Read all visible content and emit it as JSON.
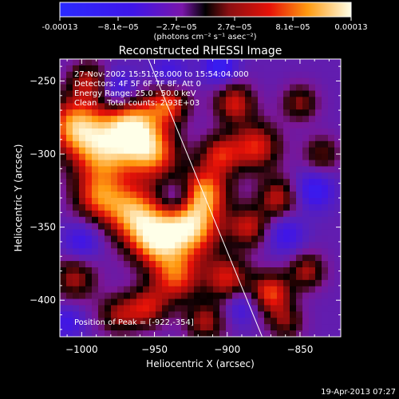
{
  "colorbar": {
    "tick_labels": [
      "-0.00013",
      "−8.1e−05",
      "−2.7e−05",
      "2.7e−05",
      "8.1e−05",
      "0.00013"
    ],
    "unit_label": "(photons cm⁻² s⁻¹ asec⁻²)",
    "range": [
      -0.00013,
      0.00013
    ]
  },
  "chart_data": {
    "type": "heatmap",
    "title": "Reconstructed RHESSI Image",
    "xlabel": "Heliocentric X (arcsec)",
    "ylabel": "Heliocentric Y (arcsec)",
    "xlim": [
      -1015,
      -822
    ],
    "ylim": [
      -425,
      -235
    ],
    "x_ticks": [
      -1000,
      -950,
      -900,
      -850
    ],
    "y_ticks": [
      -250,
      -300,
      -350,
      -400
    ],
    "x_tick_labels": [
      "−1000",
      "−950",
      "−900",
      "−850"
    ],
    "y_tick_labels": [
      "−250",
      "−300",
      "−350",
      "−400"
    ],
    "info_lines": [
      "27-Nov-2002 15:51:28.000 to 15:54:04.000",
      "Detectors: 4F 5F 6F 7F 8F, Att 0",
      "Energy Range: 25.0 - 50.0 keV",
      "Clean    Total counts: 2.93E+03"
    ],
    "peak_label": "Position of Peak = [-922,-354]",
    "peak": [
      -922,
      -354
    ],
    "limb_line": [
      [
        -955,
        -233
      ],
      [
        -876,
        -425
      ]
    ],
    "grid": false,
    "blobs": [
      [
        -1005,
        -280,
        0.85,
        14
      ],
      [
        -985,
        -300,
        0.8,
        16
      ],
      [
        -965,
        -280,
        0.9,
        14
      ],
      [
        -950,
        -300,
        0.75,
        13
      ],
      [
        -940,
        -265,
        0.7,
        10
      ],
      [
        -990,
        -330,
        0.6,
        12
      ],
      [
        -965,
        -340,
        0.85,
        14
      ],
      [
        -950,
        -360,
        0.8,
        13
      ],
      [
        -935,
        -385,
        0.7,
        12
      ],
      [
        -925,
        -350,
        1.0,
        15
      ],
      [
        -915,
        -325,
        0.75,
        12
      ],
      [
        -905,
        -300,
        0.6,
        10
      ],
      [
        -895,
        -265,
        0.65,
        10
      ],
      [
        -880,
        -295,
        0.7,
        12
      ],
      [
        -865,
        -330,
        0.6,
        10
      ],
      [
        -885,
        -350,
        0.6,
        10
      ],
      [
        -900,
        -385,
        0.65,
        11
      ],
      [
        -870,
        -395,
        0.75,
        10
      ],
      [
        -845,
        -380,
        0.55,
        9
      ],
      [
        -835,
        -300,
        0.45,
        9
      ],
      [
        -1005,
        -385,
        0.55,
        11
      ],
      [
        -975,
        -410,
        0.5,
        10
      ],
      [
        -955,
        -405,
        0.6,
        10
      ],
      [
        -915,
        -415,
        0.55,
        10
      ],
      [
        -860,
        -415,
        0.45,
        9
      ],
      [
        -995,
        -250,
        0.55,
        10
      ],
      [
        -850,
        -265,
        0.5,
        9
      ],
      [
        -975,
        -255,
        -0.5,
        9
      ],
      [
        -905,
        -240,
        -0.6,
        8
      ],
      [
        -1000,
        -360,
        -0.45,
        9
      ],
      [
        -860,
        -355,
        -0.45,
        9
      ],
      [
        -840,
        -325,
        -0.55,
        9
      ],
      [
        -935,
        -330,
        -0.4,
        8
      ],
      [
        -890,
        -405,
        -0.4,
        8
      ],
      [
        -1010,
        -415,
        -0.4,
        8
      ],
      [
        -940,
        -245,
        -0.4,
        9
      ]
    ]
  },
  "footer": {
    "timestamp": "19-Apr-2013 07:27"
  }
}
